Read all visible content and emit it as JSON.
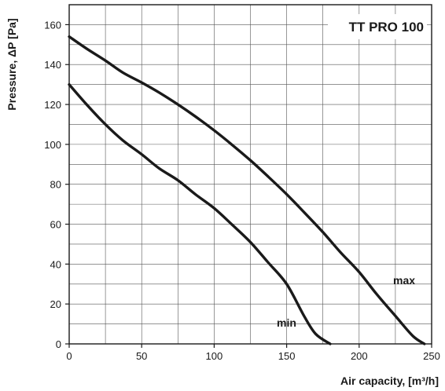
{
  "chart_data": {
    "type": "line",
    "title": "TT PRO 100",
    "xlabel": "Air capacity, [m³/h]",
    "ylabel": "Pressure, ΔP [Pa]",
    "xlim": [
      0,
      250
    ],
    "ylim": [
      0,
      170
    ],
    "x_ticks": [
      0,
      50,
      100,
      150,
      200,
      250
    ],
    "y_ticks": [
      0,
      20,
      40,
      60,
      80,
      100,
      120,
      140,
      160
    ],
    "grid": true,
    "x_grid_step": 25,
    "y_grid_step": 10,
    "series": [
      {
        "name": "max",
        "x": [
          0,
          12,
          25,
          37,
          50,
          62,
          75,
          87,
          100,
          112,
          125,
          137,
          150,
          162,
          175,
          187,
          200,
          212,
          225,
          237,
          245
        ],
        "y": [
          154,
          148,
          142,
          136,
          131,
          126,
          120,
          114,
          107,
          100,
          92,
          84,
          75,
          66,
          56,
          46,
          36,
          25,
          14,
          4,
          0
        ],
        "color": "#1a1a1a"
      },
      {
        "name": "min",
        "x": [
          0,
          12,
          25,
          37,
          50,
          62,
          75,
          87,
          100,
          112,
          125,
          137,
          150,
          162,
          170,
          180
        ],
        "y": [
          130,
          120,
          110,
          102,
          95,
          88,
          82,
          75,
          68,
          60,
          51,
          41,
          30,
          14,
          5,
          0
        ],
        "color": "#1a1a1a"
      }
    ]
  }
}
